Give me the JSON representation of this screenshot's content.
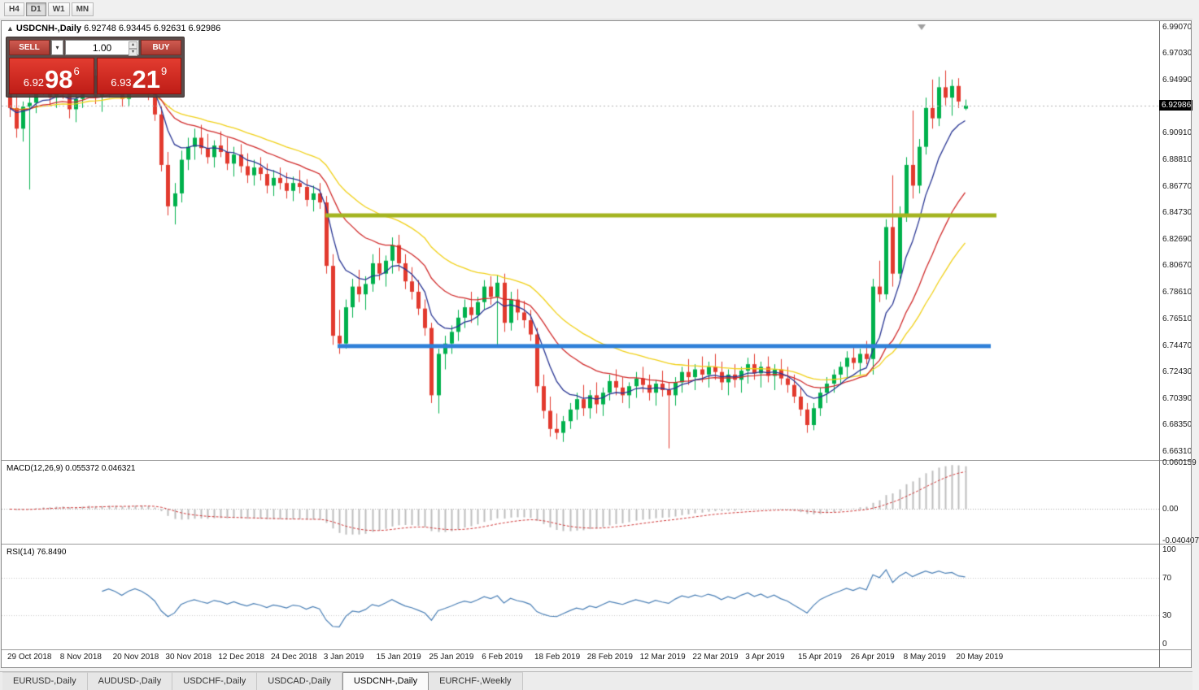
{
  "toolbar": {
    "timeframes": [
      {
        "label": "H4",
        "active": false
      },
      {
        "label": "D1",
        "active": true
      },
      {
        "label": "W1",
        "active": false
      },
      {
        "label": "MN",
        "active": false
      }
    ]
  },
  "chart": {
    "title": {
      "symbol": "USDCNH-,Daily",
      "ohlc": "6.92748 6.93445 6.92631 6.92986"
    },
    "trade_panel": {
      "sell_label": "SELL",
      "buy_label": "BUY",
      "volume": "1.00",
      "sell_price_prefix": "6.92",
      "sell_price_big": "98",
      "sell_price_sup": "6",
      "buy_price_prefix": "6.93",
      "buy_price_big": "21",
      "buy_price_sup": "9"
    },
    "price_axis_labels": [
      "6.99070",
      "6.97030",
      "6.94990",
      "6.90910",
      "6.88810",
      "6.86770",
      "6.84730",
      "6.82690",
      "6.80670",
      "6.78610",
      "6.76510",
      "6.74470",
      "6.72430",
      "6.70390",
      "6.68350",
      "6.66310"
    ],
    "current_price": "6.92986"
  },
  "chart_data": {
    "type": "candlestick",
    "title": "USDCNH-,Daily",
    "ylim": [
      6.656,
      6.9951
    ],
    "x_label_every": 8,
    "x_labels": [
      "29 Oct 2018",
      "8 Nov 2018",
      "20 Nov 2018",
      "30 Nov 2018",
      "12 Dec 2018",
      "24 Dec 2018",
      "3 Jan 2019",
      "15 Jan 2019",
      "25 Jan 2019",
      "6 Feb 2019",
      "18 Feb 2019",
      "28 Feb 2019",
      "12 Mar 2019",
      "22 Mar 2019",
      "3 Apr 2019",
      "15 Apr 2019",
      "26 Apr 2019",
      "8 May 2019",
      "20 May 2019"
    ],
    "bull_color": "#00b14c",
    "bear_color": "#e23a2e",
    "candles": [
      [
        6.94,
        6.953,
        6.921,
        6.928
      ],
      [
        6.928,
        6.94,
        6.905,
        6.912
      ],
      [
        6.912,
        6.933,
        6.902,
        6.929
      ],
      [
        6.929,
        6.938,
        6.865,
        6.932
      ],
      [
        6.932,
        6.952,
        6.924,
        6.947
      ],
      [
        6.947,
        6.957,
        6.938,
        6.942
      ],
      [
        6.942,
        6.953,
        6.93,
        6.936
      ],
      [
        6.936,
        6.95,
        6.928,
        6.945
      ],
      [
        6.945,
        6.956,
        6.935,
        6.94
      ],
      [
        6.94,
        6.948,
        6.92,
        6.927
      ],
      [
        6.927,
        6.94,
        6.917,
        6.935
      ],
      [
        6.935,
        6.952,
        6.928,
        6.947
      ],
      [
        6.947,
        6.958,
        6.94,
        6.953
      ],
      [
        6.953,
        6.958,
        6.931,
        6.937
      ],
      [
        6.937,
        6.949,
        6.925,
        6.943
      ],
      [
        6.943,
        6.956,
        6.936,
        6.951
      ],
      [
        6.951,
        6.957,
        6.94,
        6.945
      ],
      [
        6.945,
        6.954,
        6.929,
        6.935
      ],
      [
        6.935,
        6.951,
        6.929,
        6.947
      ],
      [
        6.947,
        6.958,
        6.941,
        6.955
      ],
      [
        6.955,
        6.959,
        6.944,
        6.949
      ],
      [
        6.949,
        6.956,
        6.934,
        6.939
      ],
      [
        6.939,
        6.946,
        6.918,
        6.923
      ],
      [
        6.923,
        6.929,
        6.879,
        6.884
      ],
      [
        6.884,
        6.894,
        6.845,
        6.852
      ],
      [
        6.852,
        6.87,
        6.838,
        6.862
      ],
      [
        6.862,
        6.895,
        6.855,
        6.888
      ],
      [
        6.888,
        6.905,
        6.88,
        6.898
      ],
      [
        6.898,
        6.912,
        6.888,
        6.905
      ],
      [
        6.905,
        6.915,
        6.892,
        6.897
      ],
      [
        6.897,
        6.908,
        6.885,
        6.89
      ],
      [
        6.89,
        6.903,
        6.882,
        6.899
      ],
      [
        6.899,
        6.91,
        6.89,
        6.894
      ],
      [
        6.894,
        6.905,
        6.88,
        6.885
      ],
      [
        6.885,
        6.898,
        6.875,
        6.892
      ],
      [
        6.892,
        6.9,
        6.878,
        6.883
      ],
      [
        6.883,
        6.893,
        6.87,
        6.876
      ],
      [
        6.876,
        6.888,
        6.868,
        6.882
      ],
      [
        6.882,
        6.89,
        6.872,
        6.877
      ],
      [
        6.877,
        6.885,
        6.862,
        6.868
      ],
      [
        6.868,
        6.88,
        6.86,
        6.874
      ],
      [
        6.874,
        6.882,
        6.865,
        6.87
      ],
      [
        6.87,
        6.878,
        6.858,
        6.864
      ],
      [
        6.864,
        6.875,
        6.856,
        6.87
      ],
      [
        6.87,
        6.88,
        6.862,
        6.867
      ],
      [
        6.867,
        6.873,
        6.852,
        6.857
      ],
      [
        6.857,
        6.868,
        6.848,
        6.862
      ],
      [
        6.862,
        6.87,
        6.85,
        6.855
      ],
      [
        6.855,
        6.86,
        6.8,
        6.806
      ],
      [
        6.806,
        6.815,
        6.745,
        6.752
      ],
      [
        6.752,
        6.772,
        6.738,
        6.746
      ],
      [
        6.746,
        6.78,
        6.742,
        6.774
      ],
      [
        6.774,
        6.796,
        6.766,
        6.79
      ],
      [
        6.79,
        6.803,
        6.778,
        6.784
      ],
      [
        6.784,
        6.798,
        6.772,
        6.792
      ],
      [
        6.792,
        6.815,
        6.786,
        6.808
      ],
      [
        6.808,
        6.82,
        6.795,
        6.8
      ],
      [
        6.8,
        6.814,
        6.79,
        6.81
      ],
      [
        6.81,
        6.828,
        6.8,
        6.822
      ],
      [
        6.822,
        6.83,
        6.802,
        6.808
      ],
      [
        6.808,
        6.815,
        6.788,
        6.794
      ],
      [
        6.794,
        6.805,
        6.78,
        6.786
      ],
      [
        6.786,
        6.795,
        6.768,
        6.773
      ],
      [
        6.773,
        6.78,
        6.752,
        6.758
      ],
      [
        6.758,
        6.762,
        6.7,
        6.706
      ],
      [
        6.706,
        6.742,
        6.692,
        6.738
      ],
      [
        6.738,
        6.752,
        6.726,
        6.746
      ],
      [
        6.746,
        6.76,
        6.738,
        6.755
      ],
      [
        6.755,
        6.772,
        6.748,
        6.766
      ],
      [
        6.766,
        6.78,
        6.758,
        6.774
      ],
      [
        6.774,
        6.786,
        6.762,
        6.768
      ],
      [
        6.768,
        6.782,
        6.76,
        6.778
      ],
      [
        6.778,
        6.795,
        6.772,
        6.79
      ],
      [
        6.79,
        6.798,
        6.776,
        6.782
      ],
      [
        6.782,
        6.799,
        6.745,
        6.793
      ],
      [
        6.793,
        6.8,
        6.755,
        6.762
      ],
      [
        6.762,
        6.786,
        6.756,
        6.78
      ],
      [
        6.78,
        6.788,
        6.764,
        6.77
      ],
      [
        6.77,
        6.779,
        6.758,
        6.764
      ],
      [
        6.764,
        6.772,
        6.748,
        6.753
      ],
      [
        6.753,
        6.758,
        6.708,
        6.713
      ],
      [
        6.713,
        6.722,
        6.688,
        6.694
      ],
      [
        6.694,
        6.705,
        6.674,
        6.68
      ],
      [
        6.68,
        6.692,
        6.672,
        6.677
      ],
      [
        6.677,
        6.69,
        6.67,
        6.686
      ],
      [
        6.686,
        6.7,
        6.68,
        6.695
      ],
      [
        6.695,
        6.708,
        6.687,
        6.703
      ],
      [
        6.703,
        6.714,
        6.69,
        6.696
      ],
      [
        6.696,
        6.71,
        6.688,
        6.706
      ],
      [
        6.706,
        6.716,
        6.692,
        6.699
      ],
      [
        6.699,
        6.712,
        6.69,
        6.708
      ],
      [
        6.708,
        6.722,
        6.702,
        6.717
      ],
      [
        6.717,
        6.726,
        6.706,
        6.712
      ],
      [
        6.712,
        6.72,
        6.7,
        6.706
      ],
      [
        6.706,
        6.716,
        6.696,
        6.713
      ],
      [
        6.713,
        6.724,
        6.704,
        6.719
      ],
      [
        6.719,
        6.728,
        6.708,
        6.714
      ],
      [
        6.714,
        6.722,
        6.702,
        6.708
      ],
      [
        6.708,
        6.718,
        6.698,
        6.715
      ],
      [
        6.715,
        6.725,
        6.705,
        6.71
      ],
      [
        6.71,
        6.716,
        6.665,
        6.706
      ],
      [
        6.706,
        6.72,
        6.698,
        6.716
      ],
      [
        6.716,
        6.728,
        6.708,
        6.724
      ],
      [
        6.724,
        6.734,
        6.714,
        6.72
      ],
      [
        6.72,
        6.73,
        6.71,
        6.726
      ],
      [
        6.726,
        6.736,
        6.716,
        6.722
      ],
      [
        6.722,
        6.732,
        6.712,
        6.728
      ],
      [
        6.728,
        6.738,
        6.718,
        6.724
      ],
      [
        6.724,
        6.732,
        6.71,
        6.716
      ],
      [
        6.716,
        6.726,
        6.706,
        6.722
      ],
      [
        6.722,
        6.73,
        6.712,
        6.718
      ],
      [
        6.718,
        6.728,
        6.708,
        6.725
      ],
      [
        6.725,
        6.735,
        6.715,
        6.73
      ],
      [
        6.73,
        6.738,
        6.718,
        6.723
      ],
      [
        6.723,
        6.732,
        6.712,
        6.728
      ],
      [
        6.728,
        6.736,
        6.716,
        6.721
      ],
      [
        6.721,
        6.73,
        6.71,
        6.726
      ],
      [
        6.726,
        6.734,
        6.714,
        6.719
      ],
      [
        6.719,
        6.728,
        6.708,
        6.714
      ],
      [
        6.714,
        6.722,
        6.7,
        6.705
      ],
      [
        6.705,
        6.712,
        6.69,
        6.695
      ],
      [
        6.695,
        6.7,
        6.677,
        6.683
      ],
      [
        6.683,
        6.7,
        6.679,
        6.696
      ],
      [
        6.696,
        6.712,
        6.69,
        6.708
      ],
      [
        6.708,
        6.72,
        6.7,
        6.715
      ],
      [
        6.715,
        6.726,
        6.708,
        6.722
      ],
      [
        6.722,
        6.732,
        6.714,
        6.728
      ],
      [
        6.728,
        6.74,
        6.72,
        6.735
      ],
      [
        6.735,
        6.744,
        6.726,
        6.731
      ],
      [
        6.731,
        6.742,
        6.722,
        6.738
      ],
      [
        6.738,
        6.748,
        6.73,
        6.734
      ],
      [
        6.734,
        6.796,
        6.722,
        6.79
      ],
      [
        6.79,
        6.81,
        6.778,
        6.784
      ],
      [
        6.784,
        6.842,
        6.78,
        6.836
      ],
      [
        6.836,
        6.876,
        6.79,
        6.8
      ],
      [
        6.8,
        6.852,
        6.796,
        6.846
      ],
      [
        6.846,
        6.89,
        6.84,
        6.884
      ],
      [
        6.884,
        6.926,
        6.858,
        6.868
      ],
      [
        6.868,
        6.904,
        6.862,
        6.898
      ],
      [
        6.898,
        6.936,
        6.892,
        6.928
      ],
      [
        6.928,
        6.95,
        6.912,
        6.92
      ],
      [
        6.92,
        6.952,
        6.914,
        6.944
      ],
      [
        6.944,
        6.957,
        6.93,
        6.936
      ],
      [
        6.936,
        6.95,
        6.922,
        6.945
      ],
      [
        6.945,
        6.951,
        6.928,
        6.933
      ],
      [
        6.92748,
        6.93445,
        6.92631,
        6.92986
      ]
    ],
    "overlays": {
      "ma_fast": {
        "type": "ema",
        "period": 8,
        "color": "#283593"
      },
      "ma_mid": {
        "type": "ema",
        "period": 20,
        "color": "#d02a2a"
      },
      "ma_slow": {
        "type": "ema",
        "period": 34,
        "color": "#f0d018"
      },
      "resistance_line": {
        "price": 6.845,
        "color": "#a4b420",
        "width": 5,
        "x_from": 398,
        "x_to": 1223
      },
      "support_line": {
        "price": 6.744,
        "color": "#2f80d8",
        "width": 5,
        "x_from": 413,
        "x_to": 1216
      }
    }
  },
  "macd": {
    "title": "MACD(12,26,9)",
    "values": "0.055372 0.046321",
    "params": [
      12,
      26,
      9
    ],
    "range": [
      -0.0447,
      0.0625
    ],
    "axis": [
      {
        "text": "0.060159",
        "value": 0.060159
      },
      {
        "text": "0.00",
        "value": 0
      },
      {
        "text": "-0.040407",
        "value": -0.040407
      }
    ],
    "hist_color": "#bdbdbd",
    "signal_color": "#cf3838"
  },
  "rsi": {
    "title": "RSI(14)",
    "value": "76.8490",
    "period": 14,
    "range": [
      0,
      100
    ],
    "levels": [
      70,
      30
    ],
    "axis": [
      {
        "text": "100",
        "value": 100
      },
      {
        "text": "70",
        "value": 70
      },
      {
        "text": "30",
        "value": 30
      },
      {
        "text": "0",
        "value": 0
      }
    ],
    "color": "#4a7fb5"
  },
  "tabs": [
    {
      "label": "EURUSD-,Daily",
      "active": false
    },
    {
      "label": "AUDUSD-,Daily",
      "active": false
    },
    {
      "label": "USDCHF-,Daily",
      "active": false
    },
    {
      "label": "USDCAD-,Daily",
      "active": false
    },
    {
      "label": "USDCNH-,Daily",
      "active": true
    },
    {
      "label": "EURCHF-,Weekly",
      "active": false
    }
  ]
}
